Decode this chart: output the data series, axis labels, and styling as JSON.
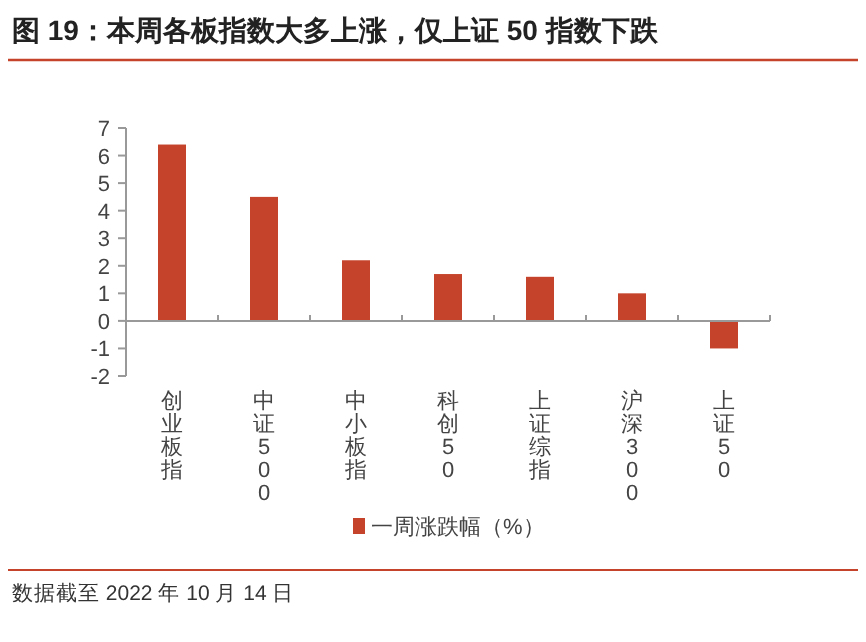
{
  "chart_data": {
    "type": "bar",
    "title": "图 19：本周各板指数大多上涨，仅上证 50 指数下跌",
    "categories": [
      "创业板指",
      "中证500",
      "中小板指",
      "科创50",
      "上证综指",
      "沪深300",
      "上证50"
    ],
    "series": [
      {
        "name": "一周涨跌幅（%）",
        "color": "#c5432a",
        "values": [
          6.4,
          4.5,
          2.2,
          1.7,
          1.6,
          1.0,
          -1.0
        ]
      }
    ],
    "ylim": [
      -2,
      7
    ],
    "yticks": [
      -2,
      -1,
      0,
      1,
      2,
      3,
      4,
      5,
      6,
      7
    ],
    "legend": "bottom",
    "annotations": [
      "数据截至 2022 年 10 月 14 日"
    ]
  }
}
